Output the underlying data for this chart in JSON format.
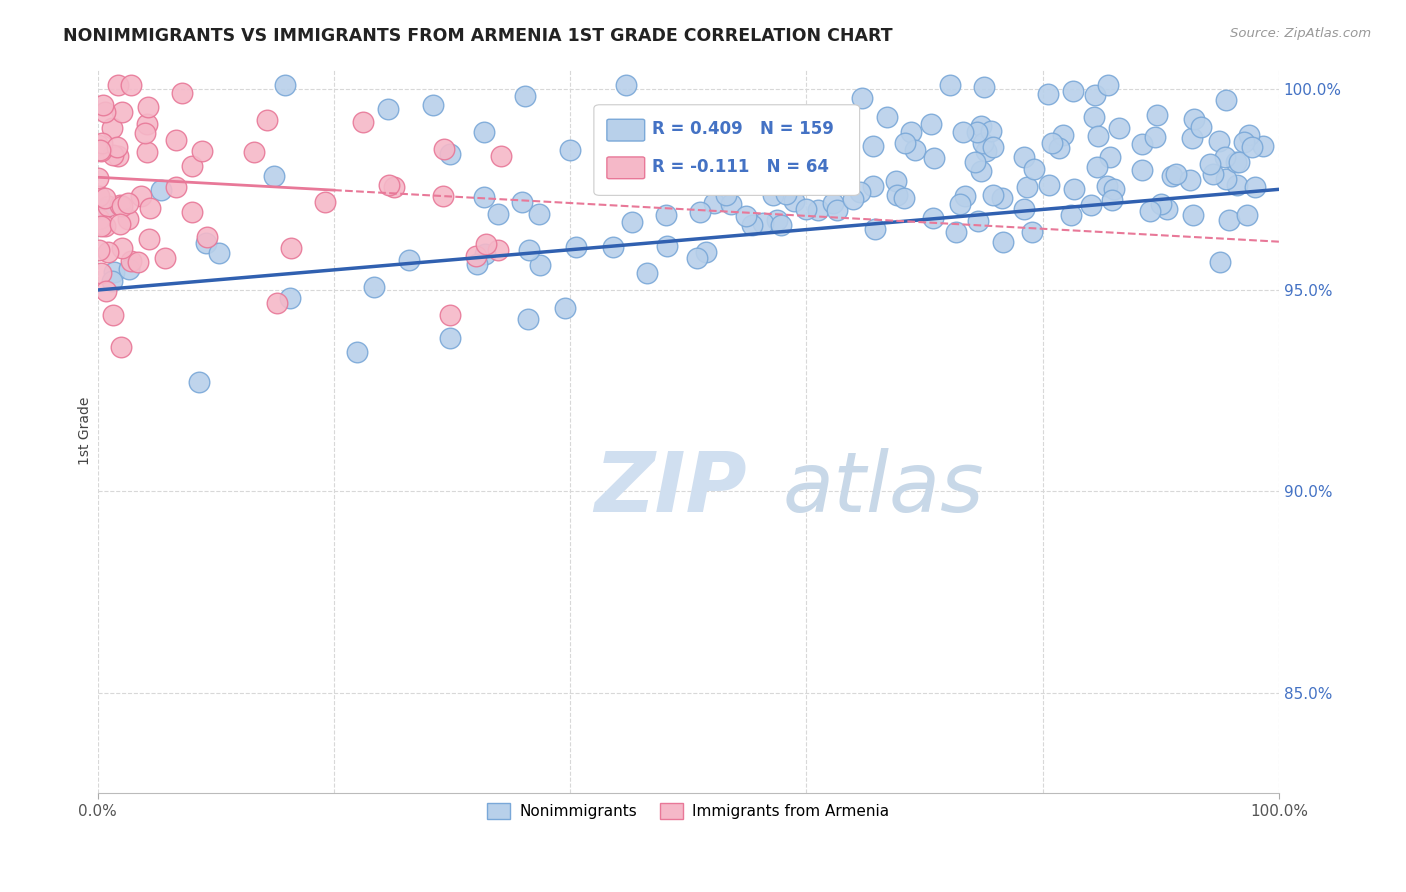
{
  "title": "NONIMMIGRANTS VS IMMIGRANTS FROM ARMENIA 1ST GRADE CORRELATION CHART",
  "source": "Source: ZipAtlas.com",
  "ylabel": "1st Grade",
  "blue_R": 0.409,
  "blue_N": 159,
  "pink_R": -0.111,
  "pink_N": 64,
  "blue_color": "#b8d0ea",
  "pink_color": "#f5b8c8",
  "blue_edge_color": "#7aa8d8",
  "pink_edge_color": "#e87898",
  "blue_line_color": "#3060b0",
  "pink_line_color": "#e87898",
  "text_color": "#4472c4",
  "watermark_color": "#d0dff0",
  "background_color": "#ffffff",
  "grid_color": "#d8d8d8",
  "xlim": [
    0.0,
    1.0
  ],
  "ylim": [
    0.825,
    1.005
  ],
  "ytick_vals": [
    0.85,
    0.9,
    0.95,
    1.0
  ],
  "ytick_labels": [
    "85.0%",
    "90.0%",
    "95.0%",
    "100.0%"
  ],
  "blue_trend_x0": 0.0,
  "blue_trend_x1": 1.0,
  "blue_trend_y0": 0.95,
  "blue_trend_y1": 0.975,
  "pink_trend_x0": 0.0,
  "pink_trend_x1": 1.0,
  "pink_trend_y0": 0.978,
  "pink_trend_y1": 0.962
}
